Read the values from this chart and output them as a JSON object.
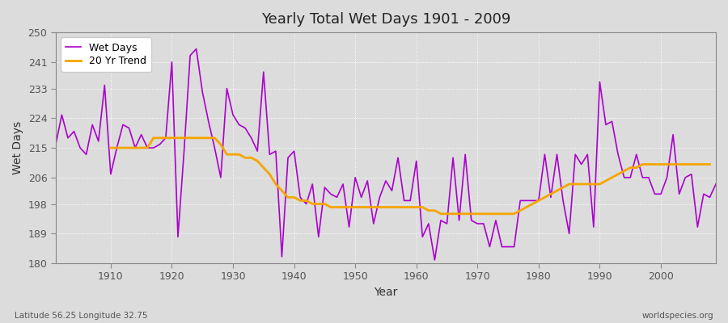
{
  "title": "Yearly Total Wet Days 1901 - 2009",
  "xlabel": "Year",
  "ylabel": "Wet Days",
  "subtitle_left": "Latitude 56.25 Longitude 32.75",
  "subtitle_right": "worldspecies.org",
  "ylim": [
    180,
    250
  ],
  "yticks": [
    180,
    189,
    198,
    206,
    215,
    224,
    233,
    241,
    250
  ],
  "xlim": [
    1901,
    2009
  ],
  "bg_color": "#dcdcdc",
  "fig_color": "#dcdcdc",
  "line_color": "#aa00cc",
  "trend_color": "#f5a500",
  "legend_loc": "upper left",
  "legend_labels": [
    "Wet Days",
    "20 Yr Trend"
  ],
  "years": [
    1901,
    1902,
    1903,
    1904,
    1905,
    1906,
    1907,
    1908,
    1909,
    1910,
    1911,
    1912,
    1913,
    1914,
    1915,
    1916,
    1917,
    1918,
    1919,
    1920,
    1921,
    1922,
    1923,
    1924,
    1925,
    1926,
    1927,
    1928,
    1929,
    1930,
    1931,
    1932,
    1933,
    1934,
    1935,
    1936,
    1937,
    1938,
    1939,
    1940,
    1941,
    1942,
    1943,
    1944,
    1945,
    1946,
    1947,
    1948,
    1949,
    1950,
    1951,
    1952,
    1953,
    1954,
    1955,
    1956,
    1957,
    1958,
    1959,
    1960,
    1961,
    1962,
    1963,
    1964,
    1965,
    1966,
    1967,
    1968,
    1969,
    1970,
    1971,
    1972,
    1973,
    1974,
    1975,
    1976,
    1977,
    1978,
    1979,
    1980,
    1981,
    1982,
    1983,
    1984,
    1985,
    1986,
    1987,
    1988,
    1989,
    1990,
    1991,
    1992,
    1993,
    1994,
    1995,
    1996,
    1997,
    1998,
    1999,
    2000,
    2001,
    2002,
    2003,
    2004,
    2005,
    2006,
    2007,
    2008,
    2009
  ],
  "wet_days": [
    216,
    225,
    218,
    220,
    215,
    213,
    222,
    217,
    234,
    207,
    215,
    222,
    221,
    215,
    219,
    215,
    215,
    216,
    218,
    241,
    188,
    214,
    243,
    245,
    232,
    223,
    215,
    206,
    233,
    225,
    222,
    221,
    218,
    214,
    238,
    213,
    214,
    182,
    212,
    214,
    200,
    198,
    204,
    188,
    203,
    201,
    200,
    204,
    191,
    206,
    200,
    205,
    192,
    200,
    205,
    202,
    212,
    199,
    199,
    211,
    188,
    192,
    181,
    193,
    192,
    212,
    193,
    213,
    193,
    192,
    192,
    185,
    193,
    185,
    185,
    185,
    199,
    199,
    199,
    199,
    213,
    200,
    213,
    199,
    189,
    213,
    210,
    213,
    191,
    235,
    222,
    223,
    213,
    206,
    206,
    213,
    206,
    206,
    201,
    201,
    206,
    219,
    201,
    206,
    207,
    191,
    201,
    200,
    204
  ],
  "trend": [
    null,
    null,
    null,
    null,
    null,
    null,
    null,
    null,
    null,
    215,
    215,
    215,
    215,
    215,
    215,
    215,
    218,
    218,
    218,
    218,
    218,
    218,
    218,
    218,
    218,
    218,
    218,
    216,
    213,
    213,
    213,
    212,
    212,
    211,
    209,
    207,
    204,
    202,
    200,
    200,
    199,
    199,
    198,
    198,
    198,
    197,
    197,
    197,
    197,
    197,
    197,
    197,
    197,
    197,
    197,
    197,
    197,
    197,
    197,
    197,
    197,
    196,
    196,
    195,
    195,
    195,
    195,
    195,
    195,
    195,
    195,
    195,
    195,
    195,
    195,
    195,
    196,
    197,
    198,
    199,
    200,
    201,
    202,
    203,
    204,
    204,
    204,
    204,
    204,
    204,
    205,
    206,
    207,
    208,
    209,
    209,
    210,
    210,
    210,
    210,
    210,
    210,
    210,
    210,
    210,
    210,
    210,
    210,
    null
  ]
}
